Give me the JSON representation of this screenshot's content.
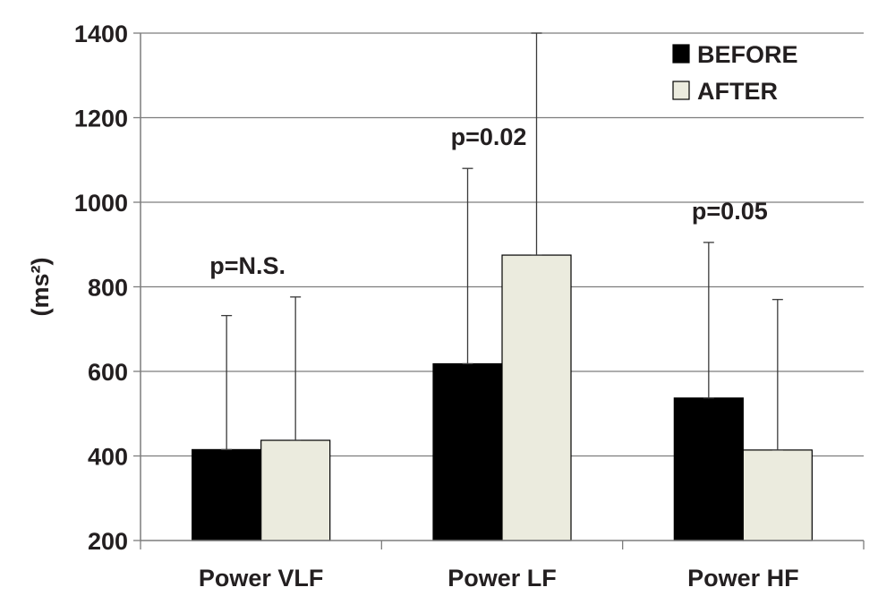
{
  "chart_data": {
    "type": "bar",
    "categories": [
      "Power VLF",
      "Power LF",
      "Power HF"
    ],
    "series": [
      {
        "name": "BEFORE",
        "values": [
          415,
          618,
          537
        ],
        "error_upper": [
          732,
          1080,
          905
        ],
        "color": "#000000"
      },
      {
        "name": "AFTER",
        "values": [
          437,
          875,
          414
        ],
        "error_upper": [
          776,
          1400,
          770
        ],
        "color": "#ebebde"
      }
    ],
    "annotations": [
      "p=N.S.",
      "p=0.02",
      "p=0.05"
    ],
    "ylabel": "(ms²)",
    "ylim": [
      200,
      1400
    ],
    "yticks": [
      200,
      400,
      600,
      800,
      1000,
      1200,
      1400
    ],
    "grid": true,
    "legend": "top-right"
  }
}
